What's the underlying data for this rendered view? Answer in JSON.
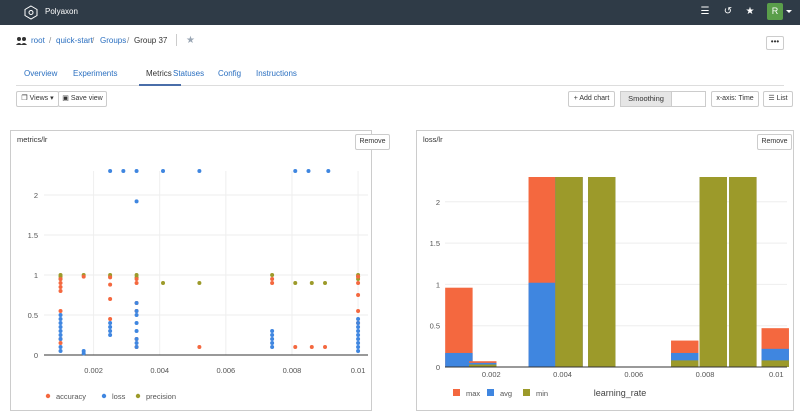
{
  "app": {
    "brand": "Polyaxon",
    "user_initial": "R"
  },
  "topbar": {
    "menu_icon": "menu-icon",
    "history_icon": "history-icon",
    "star_icon": "star-icon"
  },
  "breadcrumb": {
    "root": "root",
    "project": "quick-start",
    "groups": "Groups",
    "current": "Group 37",
    "separator": "/"
  },
  "tabs": [
    {
      "label": "Overview"
    },
    {
      "label": "Experiments"
    },
    {
      "label": "Metrics"
    },
    {
      "label": "Statuses"
    },
    {
      "label": "Config"
    },
    {
      "label": "Instructions"
    }
  ],
  "active_tab": "Metrics",
  "toolbar": {
    "views_label": "Views",
    "save_view_label": "Save view",
    "add_chart_label": "Add chart",
    "smoothing_label": "Smoothing",
    "smoothing_value": "",
    "xaxis_label": "x-axis: Time",
    "list_label": "List"
  },
  "panels": {
    "left": {
      "title": "metrics/lr",
      "remove_label": "Remove"
    },
    "right": {
      "title": "loss/lr",
      "remove_label": "Remove"
    }
  },
  "colors": {
    "accuracy": "#f4683f",
    "loss": "#3f86e0",
    "precision": "#9c9a2a",
    "max": "#f4683f",
    "avg": "#3f86e0",
    "min": "#9c9a2a"
  },
  "chart_data": [
    {
      "type": "scatter",
      "title": "metrics/lr",
      "xlim": [
        0.0005,
        0.0103
      ],
      "ylim": [
        0,
        2.3
      ],
      "xticks": [
        "0.002",
        "0.004",
        "0.006",
        "0.008",
        "0.01"
      ],
      "yticks": [
        "0",
        "0.5",
        "1",
        "1.5",
        "2"
      ],
      "xtick_values": [
        0.002,
        0.004,
        0.006,
        0.008,
        0.01
      ],
      "ytick_values": [
        0,
        0.5,
        1,
        1.5,
        2
      ],
      "legend_position": "bottom-left",
      "series": [
        {
          "name": "accuracy",
          "points": [
            [
              0.001,
              0.95
            ],
            [
              0.001,
              0.9
            ],
            [
              0.001,
              0.85
            ],
            [
              0.001,
              0.8
            ],
            [
              0.001,
              0.55
            ],
            [
              0.001,
              0.2
            ],
            [
              0.001,
              0.15
            ],
            [
              0.0017,
              0.98
            ],
            [
              0.0025,
              0.97
            ],
            [
              0.0025,
              0.88
            ],
            [
              0.0025,
              0.7
            ],
            [
              0.0025,
              0.45
            ],
            [
              0.0033,
              0.95
            ],
            [
              0.0033,
              0.9
            ],
            [
              0.0033,
              0.65
            ],
            [
              0.0033,
              0.55
            ],
            [
              0.0033,
              0.2
            ],
            [
              0.0033,
              0.1
            ],
            [
              0.0052,
              0.1
            ],
            [
              0.0074,
              0.95
            ],
            [
              0.0074,
              0.9
            ],
            [
              0.0081,
              0.1
            ],
            [
              0.0086,
              0.1
            ],
            [
              0.009,
              0.1
            ],
            [
              0.01,
              0.98
            ],
            [
              0.01,
              0.9
            ],
            [
              0.01,
              0.75
            ],
            [
              0.01,
              0.55
            ],
            [
              0.01,
              0.4
            ]
          ]
        },
        {
          "name": "loss",
          "points": [
            [
              0.001,
              0.5
            ],
            [
              0.001,
              0.45
            ],
            [
              0.001,
              0.4
            ],
            [
              0.001,
              0.35
            ],
            [
              0.001,
              0.3
            ],
            [
              0.001,
              0.25
            ],
            [
              0.001,
              0.2
            ],
            [
              0.001,
              0.1
            ],
            [
              0.001,
              0.05
            ],
            [
              0.0017,
              0.05
            ],
            [
              0.0017,
              0.02
            ],
            [
              0.0025,
              2.3
            ],
            [
              0.0025,
              0.4
            ],
            [
              0.0025,
              0.35
            ],
            [
              0.0025,
              0.3
            ],
            [
              0.0025,
              0.25
            ],
            [
              0.0029,
              2.3
            ],
            [
              0.0033,
              2.3
            ],
            [
              0.0033,
              1.92
            ],
            [
              0.0033,
              0.65
            ],
            [
              0.0033,
              0.55
            ],
            [
              0.0033,
              0.5
            ],
            [
              0.0033,
              0.4
            ],
            [
              0.0033,
              0.3
            ],
            [
              0.0033,
              0.2
            ],
            [
              0.0033,
              0.15
            ],
            [
              0.0033,
              0.1
            ],
            [
              0.0041,
              2.3
            ],
            [
              0.0052,
              2.3
            ],
            [
              0.0074,
              0.3
            ],
            [
              0.0074,
              0.25
            ],
            [
              0.0074,
              0.2
            ],
            [
              0.0074,
              0.15
            ],
            [
              0.0074,
              0.1
            ],
            [
              0.0081,
              2.3
            ],
            [
              0.0085,
              2.3
            ],
            [
              0.0091,
              2.3
            ],
            [
              0.01,
              0.45
            ],
            [
              0.01,
              0.4
            ],
            [
              0.01,
              0.35
            ],
            [
              0.01,
              0.3
            ],
            [
              0.01,
              0.25
            ],
            [
              0.01,
              0.2
            ],
            [
              0.01,
              0.15
            ],
            [
              0.01,
              0.1
            ],
            [
              0.01,
              0.05
            ]
          ]
        },
        {
          "name": "precision",
          "points": [
            [
              0.001,
              1.0
            ],
            [
              0.001,
              0.98
            ],
            [
              0.001,
              0.95
            ],
            [
              0.0017,
              1.0
            ],
            [
              0.0025,
              1.0
            ],
            [
              0.0025,
              0.98
            ],
            [
              0.0033,
              1.0
            ],
            [
              0.0033,
              0.97
            ],
            [
              0.0041,
              0.9
            ],
            [
              0.0052,
              0.9
            ],
            [
              0.0074,
              1.0
            ],
            [
              0.0081,
              0.9
            ],
            [
              0.0086,
              0.9
            ],
            [
              0.009,
              0.9
            ],
            [
              0.01,
              1.0
            ],
            [
              0.01,
              0.98
            ],
            [
              0.01,
              0.95
            ]
          ]
        }
      ]
    },
    {
      "type": "bar",
      "title": "loss/lr",
      "xlabel": "learning_rate",
      "xlim": [
        0.0007,
        0.0103
      ],
      "ylim": [
        0,
        2.3
      ],
      "xticks": [
        "0.002",
        "0.004",
        "0.006",
        "0.008",
        "0.01"
      ],
      "yticks": [
        "0",
        "0.5",
        "1",
        "1.5",
        "2"
      ],
      "xtick_values": [
        0.002,
        0.004,
        0.006,
        0.008,
        0.01
      ],
      "ytick_values": [
        0,
        0.5,
        1,
        1.5,
        2
      ],
      "bar_width": 0.00077,
      "legend_position": "bottom-left",
      "series_names": [
        "max",
        "avg",
        "min"
      ],
      "bars": [
        {
          "x": 0.00109,
          "min": 0.0,
          "avg": 0.17,
          "max": 0.96
        },
        {
          "x": 0.00176,
          "min": 0.03,
          "avg": 0.05,
          "max": 0.07
        },
        {
          "x": 0.00343,
          "min": 0.0,
          "avg": 1.02,
          "max": 2.3
        },
        {
          "x": 0.00418,
          "min": 2.3,
          "avg": 2.3,
          "max": 2.3
        },
        {
          "x": 0.0051,
          "min": 2.3,
          "avg": 2.3,
          "max": 2.3
        },
        {
          "x": 0.00743,
          "min": 0.08,
          "avg": 0.17,
          "max": 0.32
        },
        {
          "x": 0.00823,
          "min": 2.3,
          "avg": 2.3,
          "max": 2.3
        },
        {
          "x": 0.00906,
          "min": 2.3,
          "avg": 2.3,
          "max": 2.3
        },
        {
          "x": 0.00997,
          "min": 0.08,
          "avg": 0.22,
          "max": 0.47
        }
      ]
    }
  ]
}
